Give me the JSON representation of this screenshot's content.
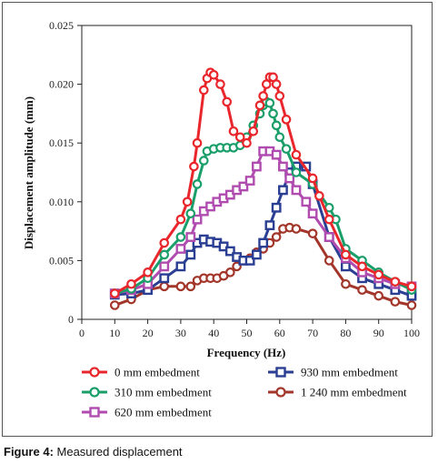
{
  "chart_data": {
    "type": "line",
    "xlabel": "Frequency (Hz)",
    "ylabel": "Displacement amplitude (mm)",
    "xlim": [
      0,
      100
    ],
    "ylim": [
      0,
      0.025
    ],
    "x_ticks": [
      "0",
      "10",
      "20",
      "30",
      "40",
      "50",
      "60",
      "70",
      "80",
      "90",
      "100"
    ],
    "y_ticks": [
      "0",
      "0.005",
      "0.010",
      "0.015",
      "0.020",
      "0.025"
    ],
    "grid": false,
    "legend_position": "bottom",
    "series": [
      {
        "name": "0 mm embedment",
        "color": "#e8262b",
        "marker": "circle",
        "x": [
          10,
          15,
          20,
          25,
          30,
          32,
          34,
          35,
          37,
          38,
          39,
          40,
          42,
          44,
          46,
          48,
          50,
          52,
          54,
          55,
          56,
          57,
          58,
          59,
          60,
          62,
          65,
          70,
          72,
          75,
          80,
          85,
          90,
          95,
          100
        ],
        "y": [
          0.0022,
          0.003,
          0.004,
          0.0065,
          0.0085,
          0.01,
          0.013,
          0.015,
          0.0195,
          0.0205,
          0.021,
          0.0208,
          0.02,
          0.0185,
          0.016,
          0.0155,
          0.015,
          0.016,
          0.0182,
          0.019,
          0.02,
          0.0206,
          0.0206,
          0.02,
          0.019,
          0.017,
          0.014,
          0.012,
          0.0105,
          0.0085,
          0.0055,
          0.0045,
          0.0038,
          0.0032,
          0.0028
        ]
      },
      {
        "name": "310 mm embedment",
        "color": "#1a9e6a",
        "marker": "circle",
        "x": [
          10,
          15,
          20,
          25,
          30,
          33,
          35,
          37,
          38,
          40,
          42,
          44,
          46,
          48,
          50,
          52,
          54,
          55,
          56,
          57,
          58,
          59,
          60,
          62,
          65,
          70,
          75,
          77,
          80,
          85,
          90,
          95,
          100
        ],
        "y": [
          0.0022,
          0.0026,
          0.0035,
          0.0055,
          0.007,
          0.009,
          0.0115,
          0.0135,
          0.0143,
          0.0145,
          0.0146,
          0.0146,
          0.0146,
          0.0148,
          0.0155,
          0.0165,
          0.0175,
          0.0182,
          0.0185,
          0.0184,
          0.0175,
          0.0165,
          0.0155,
          0.0145,
          0.0125,
          0.0115,
          0.0095,
          0.0085,
          0.006,
          0.005,
          0.004,
          0.0032,
          0.0025
        ]
      },
      {
        "name": "620 mm embedment",
        "color": "#b04cb0",
        "marker": "square",
        "x": [
          10,
          15,
          20,
          25,
          30,
          33,
          35,
          37,
          39,
          41,
          43,
          45,
          47,
          49,
          51,
          53,
          55,
          57,
          59,
          61,
          63,
          65,
          68,
          70,
          75,
          80,
          85,
          90,
          95,
          100
        ],
        "y": [
          0.0022,
          0.0025,
          0.003,
          0.0045,
          0.006,
          0.007,
          0.0085,
          0.0092,
          0.0096,
          0.01,
          0.0103,
          0.0106,
          0.011,
          0.0113,
          0.0118,
          0.013,
          0.0143,
          0.0143,
          0.014,
          0.013,
          0.012,
          0.011,
          0.01,
          0.009,
          0.007,
          0.0052,
          0.004,
          0.0035,
          0.003,
          0.0028
        ]
      },
      {
        "name": "930 mm embedment",
        "color": "#2a3e93",
        "marker": "square",
        "x": [
          10,
          15,
          20,
          25,
          30,
          33,
          35,
          37,
          39,
          41,
          43,
          45,
          47,
          49,
          51,
          53,
          55,
          57,
          59,
          61,
          63,
          65,
          68,
          70,
          75,
          80,
          85,
          90,
          95,
          100
        ],
        "y": [
          0.0021,
          0.0022,
          0.0025,
          0.0035,
          0.0045,
          0.0055,
          0.0065,
          0.0068,
          0.0066,
          0.0065,
          0.0062,
          0.0058,
          0.0053,
          0.005,
          0.005,
          0.0055,
          0.0065,
          0.008,
          0.0095,
          0.011,
          0.0125,
          0.013,
          0.013,
          0.0115,
          0.007,
          0.0045,
          0.0035,
          0.003,
          0.0025,
          0.002
        ]
      },
      {
        "name": "1 240 mm embedment",
        "color": "#a3362a",
        "marker": "circle",
        "x": [
          10,
          15,
          20,
          25,
          30,
          33,
          35,
          37,
          39,
          41,
          43,
          45,
          47,
          49,
          51,
          53,
          55,
          57,
          59,
          61,
          63,
          65,
          70,
          75,
          80,
          85,
          90,
          95,
          100
        ],
        "y": [
          0.0012,
          0.0017,
          0.0025,
          0.0028,
          0.0028,
          0.0028,
          0.0033,
          0.0035,
          0.0035,
          0.0035,
          0.0037,
          0.004,
          0.0045,
          0.005,
          0.0052,
          0.0057,
          0.006,
          0.0065,
          0.007,
          0.0077,
          0.0078,
          0.0077,
          0.0073,
          0.005,
          0.003,
          0.0025,
          0.002,
          0.0015,
          0.0012
        ]
      }
    ]
  },
  "caption": {
    "label": "Figure 4:",
    "text": " Measured displacement"
  }
}
